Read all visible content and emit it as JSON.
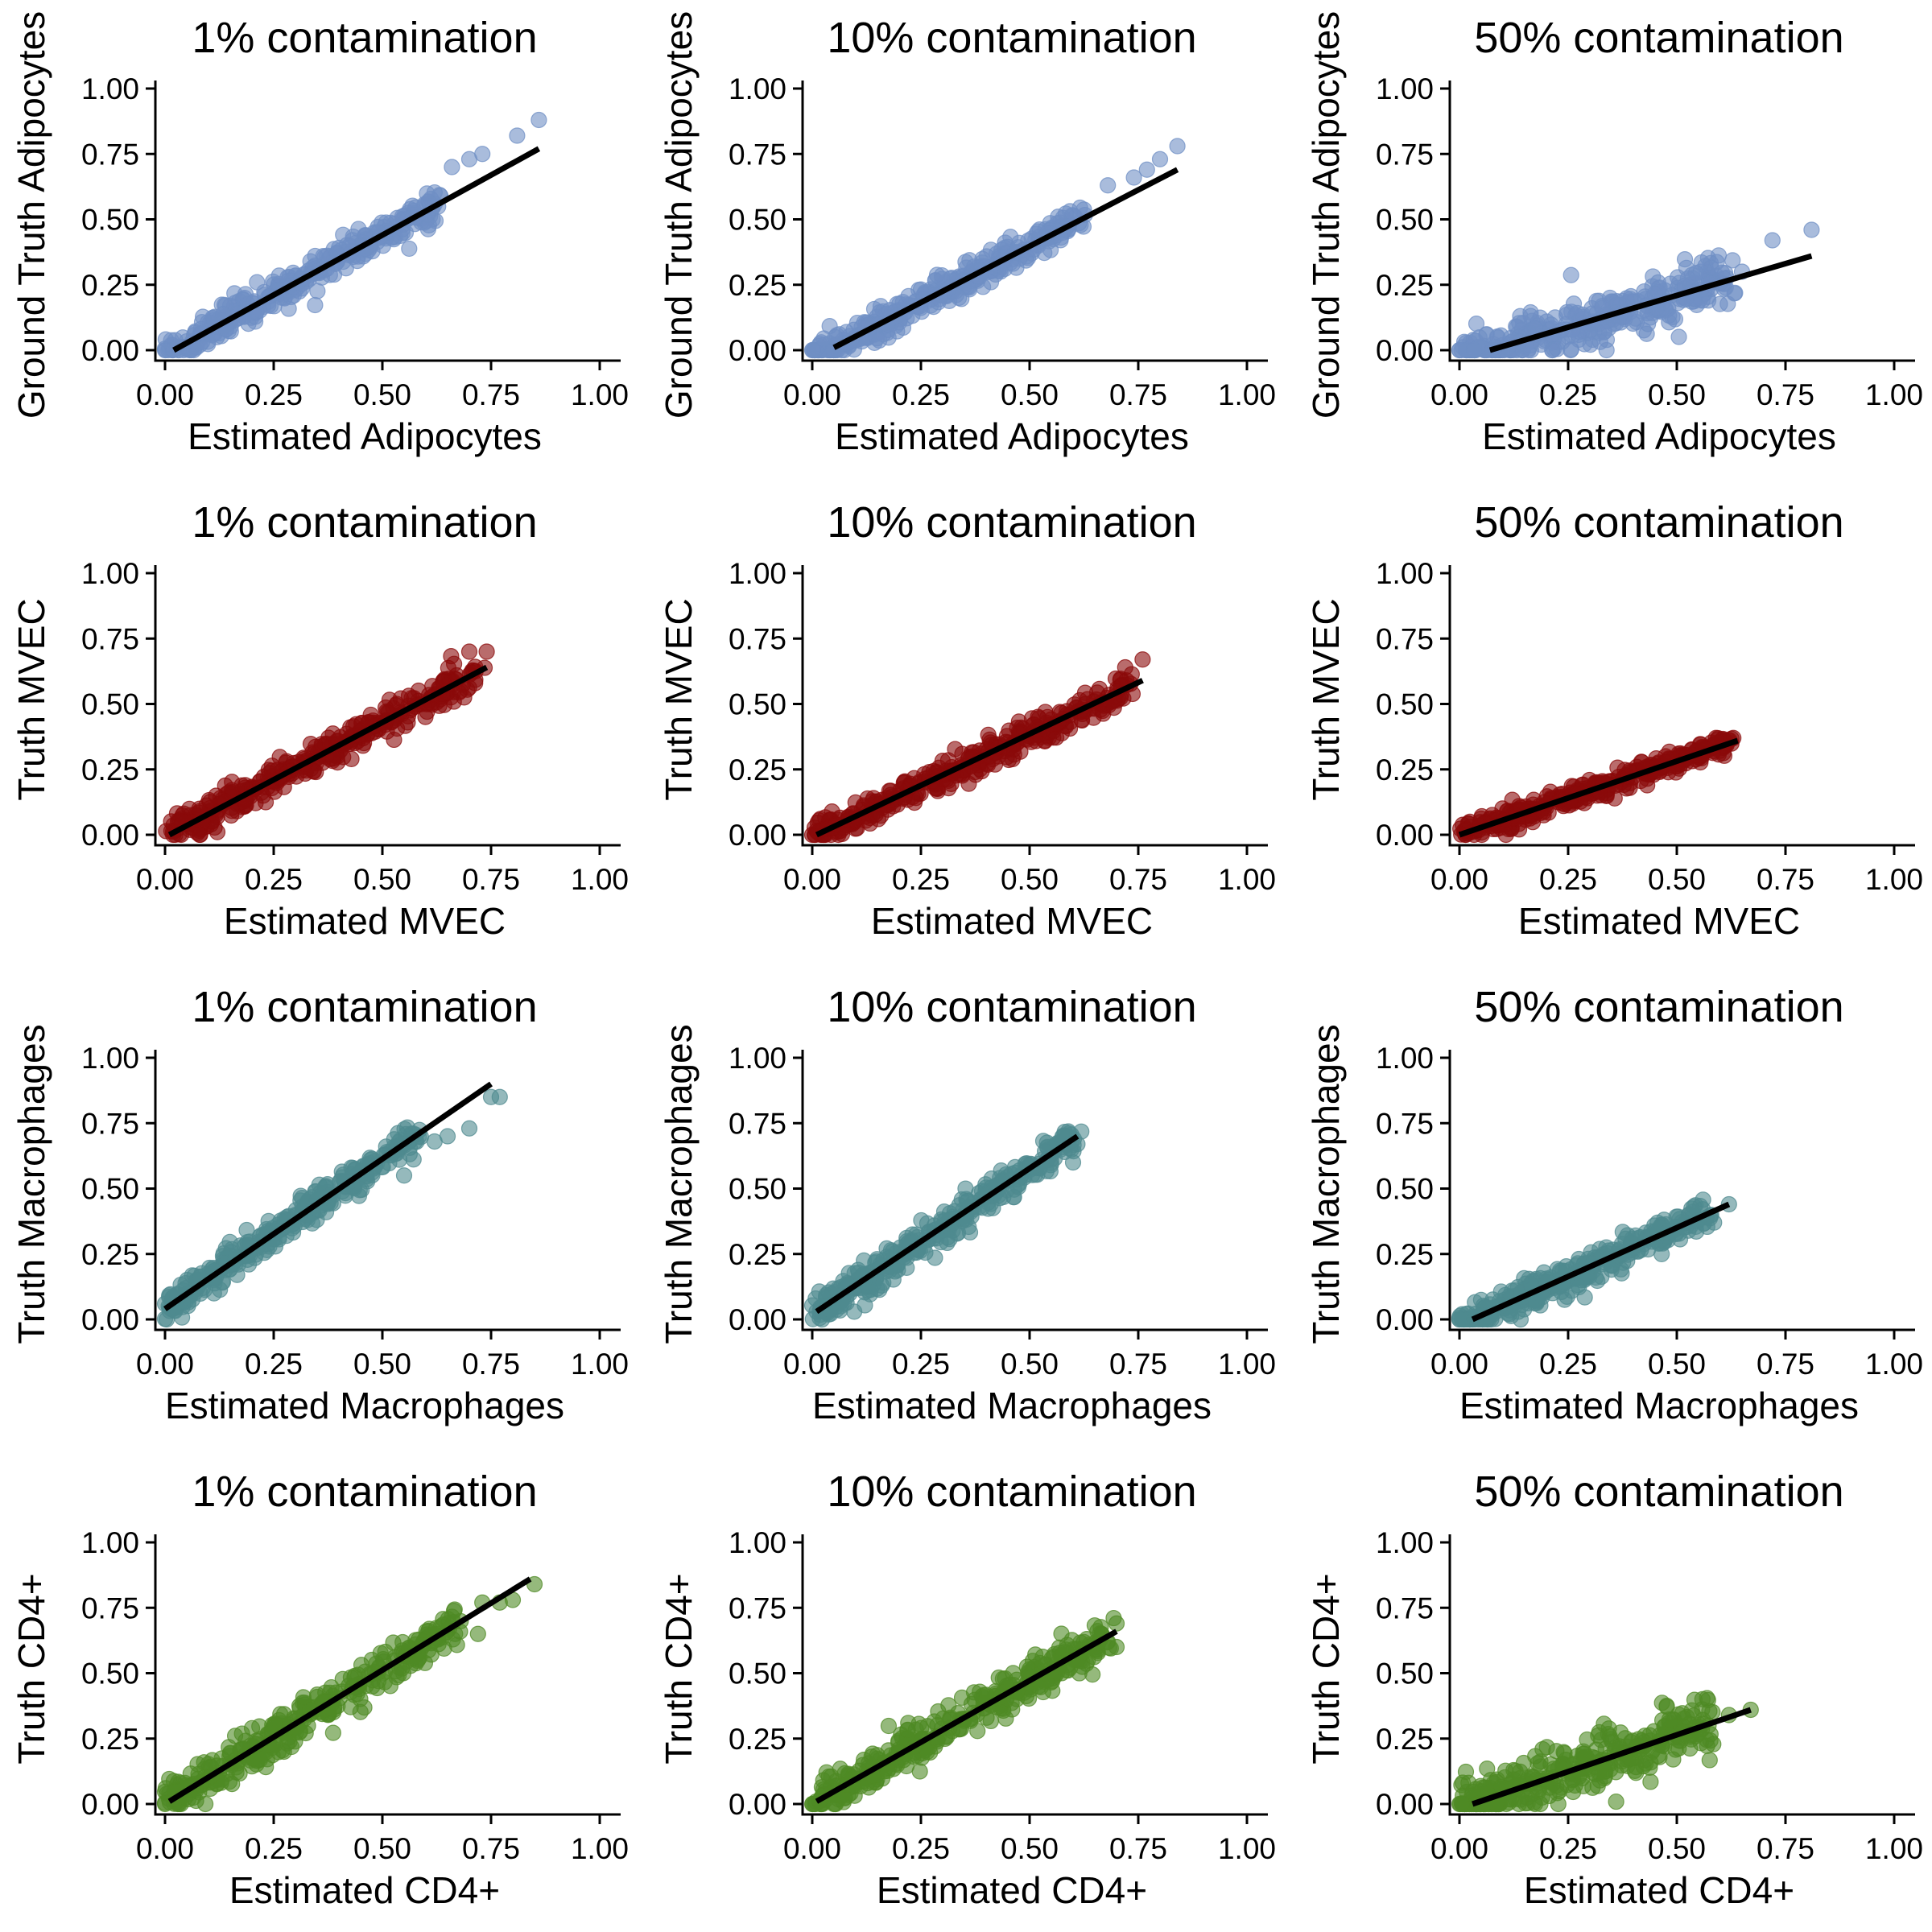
{
  "colors": {
    "adipocytes": "#6f8fc4",
    "mvec": "#8b0a0a",
    "macrophages": "#4f8a8f",
    "cd4": "#4f8a24",
    "fit_line": "#000000",
    "axis": "#000000"
  },
  "chart_data": [
    {
      "type": "scatter",
      "title": "1% contamination",
      "xlabel": "Estimated Adipocytes",
      "ylabel": "Ground Truth Adipocytes",
      "color_key": "adipocytes",
      "xlim": [
        0,
        1
      ],
      "ylim": [
        0,
        1
      ],
      "xticks": [
        "0.00",
        "0.25",
        "0.50",
        "0.75",
        "1.00"
      ],
      "yticks": [
        "0.00",
        "0.25",
        "0.50",
        "0.75",
        "1.00"
      ],
      "trend": {
        "x0": 0.02,
        "y0": 0.0,
        "x1": 0.86,
        "y1": 0.77
      },
      "points_range": {
        "xmax": 0.62,
        "slope": 1.0,
        "spread": 0.03
      },
      "outliers": [
        [
          0.66,
          0.7
        ],
        [
          0.7,
          0.73
        ],
        [
          0.73,
          0.75
        ],
        [
          0.81,
          0.82
        ],
        [
          0.86,
          0.88
        ]
      ],
      "grid": false
    },
    {
      "type": "scatter",
      "title": "10% contamination",
      "xlabel": "Estimated Adipocytes",
      "ylabel": "Ground Truth Adipocytes",
      "color_key": "adipocytes",
      "xlim": [
        0,
        1
      ],
      "ylim": [
        0,
        1
      ],
      "xticks": [
        "0.00",
        "0.25",
        "0.50",
        "0.75",
        "1.00"
      ],
      "yticks": [
        "0.00",
        "0.25",
        "0.50",
        "0.75",
        "1.00"
      ],
      "trend": {
        "x0": 0.05,
        "y0": 0.01,
        "x1": 0.84,
        "y1": 0.69
      },
      "points_range": {
        "xmax": 0.62,
        "slope": 0.95,
        "spread": 0.03
      },
      "outliers": [
        [
          0.68,
          0.63
        ],
        [
          0.74,
          0.66
        ],
        [
          0.77,
          0.69
        ],
        [
          0.8,
          0.73
        ],
        [
          0.84,
          0.78
        ]
      ],
      "grid": false
    },
    {
      "type": "scatter",
      "title": "50% contamination",
      "xlabel": "Estimated Adipocytes",
      "ylabel": "Ground Truth Adipocytes",
      "color_key": "adipocytes",
      "xlim": [
        0,
        1
      ],
      "ylim": [
        0,
        1
      ],
      "xticks": [
        "0.00",
        "0.25",
        "0.50",
        "0.75",
        "1.00"
      ],
      "yticks": [
        "0.00",
        "0.25",
        "0.50",
        "0.75",
        "1.00"
      ],
      "trend": {
        "x0": 0.07,
        "y0": 0.0,
        "x1": 0.81,
        "y1": 0.36
      },
      "points_range": {
        "xmax": 0.62,
        "slope": 0.52,
        "spread": 0.05
      },
      "outliers": [
        [
          0.65,
          0.3
        ],
        [
          0.72,
          0.42
        ],
        [
          0.81,
          0.46
        ]
      ],
      "grid": false
    },
    {
      "type": "scatter",
      "title": "1% contamination",
      "xlabel": "Estimated MVEC",
      "ylabel": "Truth MVEC",
      "color_key": "mvec",
      "xlim": [
        0,
        1
      ],
      "ylim": [
        0,
        1
      ],
      "xticks": [
        "0.00",
        "0.25",
        "0.50",
        "0.75",
        "1.00"
      ],
      "yticks": [
        "0.00",
        "0.25",
        "0.50",
        "0.75",
        "1.00"
      ],
      "trend": {
        "x0": 0.01,
        "y0": 0.0,
        "x1": 0.74,
        "y1": 0.64
      },
      "points_range": {
        "xmax": 0.72,
        "slope": 0.9,
        "spread": 0.03
      },
      "outliers": [
        [
          0.7,
          0.7
        ],
        [
          0.74,
          0.7
        ],
        [
          0.68,
          0.55
        ]
      ],
      "grid": false
    },
    {
      "type": "scatter",
      "title": "10% contamination",
      "xlabel": "Estimated MVEC",
      "ylabel": "Truth MVEC",
      "color_key": "mvec",
      "xlim": [
        0,
        1
      ],
      "ylim": [
        0,
        1
      ],
      "xticks": [
        "0.00",
        "0.25",
        "0.50",
        "0.75",
        "1.00"
      ],
      "yticks": [
        "0.00",
        "0.25",
        "0.50",
        "0.75",
        "1.00"
      ],
      "trend": {
        "x0": 0.01,
        "y0": 0.0,
        "x1": 0.76,
        "y1": 0.59
      },
      "points_range": {
        "xmax": 0.72,
        "slope": 0.8,
        "spread": 0.03
      },
      "outliers": [
        [
          0.72,
          0.64
        ],
        [
          0.76,
          0.67
        ]
      ],
      "grid": false
    },
    {
      "type": "scatter",
      "title": "50% contamination",
      "xlabel": "Estimated MVEC",
      "ylabel": "Truth MVEC",
      "color_key": "mvec",
      "xlim": [
        0,
        1
      ],
      "ylim": [
        0,
        1
      ],
      "xticks": [
        "0.00",
        "0.25",
        "0.50",
        "0.75",
        "1.00"
      ],
      "yticks": [
        "0.00",
        "0.25",
        "0.50",
        "0.75",
        "1.00"
      ],
      "trend": {
        "x0": 0.0,
        "y0": 0.0,
        "x1": 0.64,
        "y1": 0.36
      },
      "points_range": {
        "xmax": 0.62,
        "slope": 0.56,
        "spread": 0.02
      },
      "outliers": [
        [
          0.63,
          0.37
        ],
        [
          0.59,
          0.37
        ]
      ],
      "grid": false
    },
    {
      "type": "scatter",
      "title": "1% contamination",
      "xlabel": "Estimated Macrophages",
      "ylabel": "Truth Macrophages",
      "color_key": "macrophages",
      "xlim": [
        0,
        1
      ],
      "ylim": [
        0,
        1
      ],
      "xticks": [
        "0.00",
        "0.25",
        "0.50",
        "0.75",
        "1.00"
      ],
      "yticks": [
        "0.00",
        "0.25",
        "0.50",
        "0.75",
        "1.00"
      ],
      "trend": {
        "x0": 0.0,
        "y0": 0.04,
        "x1": 0.75,
        "y1": 0.9
      },
      "points_range": {
        "xmax": 0.58,
        "slope": 1.05,
        "spread": 0.03
      },
      "outliers": [
        [
          0.62,
          0.68
        ],
        [
          0.65,
          0.7
        ],
        [
          0.7,
          0.73
        ],
        [
          0.75,
          0.85
        ],
        [
          0.77,
          0.85
        ],
        [
          0.55,
          0.55
        ]
      ],
      "grid": false
    },
    {
      "type": "scatter",
      "title": "10% contamination",
      "xlabel": "Estimated Macrophages",
      "ylabel": "Truth Macrophages",
      "color_key": "macrophages",
      "xlim": [
        0,
        1
      ],
      "ylim": [
        0,
        1
      ],
      "xticks": [
        "0.00",
        "0.25",
        "0.50",
        "0.75",
        "1.00"
      ],
      "yticks": [
        "0.00",
        "0.25",
        "0.50",
        "0.75",
        "1.00"
      ],
      "trend": {
        "x0": 0.01,
        "y0": 0.03,
        "x1": 0.61,
        "y1": 0.7
      },
      "points_range": {
        "xmax": 0.6,
        "slope": 1.08,
        "spread": 0.03
      },
      "outliers": [
        [
          0.61,
          0.67
        ],
        [
          0.6,
          0.6
        ]
      ],
      "grid": false
    },
    {
      "type": "scatter",
      "title": "50% contamination",
      "xlabel": "Estimated Macrophages",
      "ylabel": "Truth Macrophages",
      "color_key": "macrophages",
      "xlim": [
        0,
        1
      ],
      "ylim": [
        0,
        1
      ],
      "xticks": [
        "0.00",
        "0.25",
        "0.50",
        "0.75",
        "1.00"
      ],
      "yticks": [
        "0.00",
        "0.25",
        "0.50",
        "0.75",
        "1.00"
      ],
      "trend": {
        "x0": 0.03,
        "y0": 0.0,
        "x1": 0.62,
        "y1": 0.44
      },
      "points_range": {
        "xmax": 0.58,
        "slope": 0.72,
        "spread": 0.03
      },
      "outliers": [
        [
          0.62,
          0.44
        ],
        [
          0.55,
          0.38
        ]
      ],
      "grid": false
    },
    {
      "type": "scatter",
      "title": "1% contamination",
      "xlabel": "Estimated CD4+",
      "ylabel": "Truth CD4+",
      "color_key": "cd4",
      "xlim": [
        0,
        1
      ],
      "ylim": [
        0,
        1
      ],
      "xticks": [
        "0.00",
        "0.25",
        "0.50",
        "0.75",
        "1.00"
      ],
      "yticks": [
        "0.00",
        "0.25",
        "0.50",
        "0.75",
        "1.00"
      ],
      "trend": {
        "x0": 0.01,
        "y0": 0.01,
        "x1": 0.84,
        "y1": 0.86
      },
      "points_range": {
        "xmax": 0.68,
        "slope": 1.0,
        "spread": 0.04
      },
      "outliers": [
        [
          0.73,
          0.77
        ],
        [
          0.77,
          0.77
        ],
        [
          0.8,
          0.78
        ],
        [
          0.85,
          0.84
        ],
        [
          0.72,
          0.65
        ]
      ],
      "grid": false
    },
    {
      "type": "scatter",
      "title": "10% contamination",
      "xlabel": "Estimated CD4+",
      "ylabel": "Truth CD4+",
      "color_key": "cd4",
      "xlim": [
        0,
        1
      ],
      "ylim": [
        0,
        1
      ],
      "xticks": [
        "0.00",
        "0.25",
        "0.50",
        "0.75",
        "1.00"
      ],
      "yticks": [
        "0.00",
        "0.25",
        "0.50",
        "0.75",
        "1.00"
      ],
      "trend": {
        "x0": 0.01,
        "y0": 0.01,
        "x1": 0.7,
        "y1": 0.66
      },
      "points_range": {
        "xmax": 0.67,
        "slope": 0.93,
        "spread": 0.04
      },
      "outliers": [
        [
          0.7,
          0.69
        ],
        [
          0.7,
          0.6
        ],
        [
          0.68,
          0.62
        ]
      ],
      "grid": false
    },
    {
      "type": "scatter",
      "title": "50% contamination",
      "xlabel": "Estimated CD4+",
      "ylabel": "Truth CD4+",
      "color_key": "cd4",
      "xlim": [
        0,
        1
      ],
      "ylim": [
        0,
        1
      ],
      "xticks": [
        "0.00",
        "0.25",
        "0.50",
        "0.75",
        "1.00"
      ],
      "yticks": [
        "0.00",
        "0.25",
        "0.50",
        "0.75",
        "1.00"
      ],
      "trend": {
        "x0": 0.03,
        "y0": 0.0,
        "x1": 0.67,
        "y1": 0.36
      },
      "points_range": {
        "xmax": 0.58,
        "slope": 0.58,
        "spread": 0.05
      },
      "outliers": [
        [
          0.67,
          0.36
        ],
        [
          0.62,
          0.34
        ]
      ],
      "grid": false
    }
  ]
}
